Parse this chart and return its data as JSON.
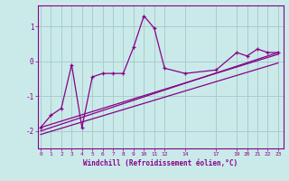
{
  "xlabel": "Windchill (Refroidissement éolien,°C)",
  "background_color": "#caeaea",
  "line_color": "#880088",
  "grid_color": "#aacccc",
  "xticks": [
    0,
    1,
    2,
    3,
    4,
    5,
    6,
    7,
    8,
    9,
    10,
    11,
    12,
    14,
    17,
    19,
    20,
    21,
    22,
    23
  ],
  "yticks": [
    -2,
    -1,
    0,
    1
  ],
  "xlim": [
    -0.3,
    23.5
  ],
  "ylim": [
    -2.5,
    1.6
  ],
  "main_x": [
    0,
    1,
    2,
    3,
    4,
    5,
    6,
    7,
    8,
    9,
    10,
    11,
    12,
    14,
    17,
    19,
    20,
    21,
    22,
    23
  ],
  "main_y": [
    -1.9,
    -1.55,
    -1.35,
    -0.1,
    -1.9,
    -0.45,
    -0.35,
    -0.35,
    -0.35,
    0.4,
    1.3,
    0.95,
    -0.2,
    -0.35,
    -0.25,
    0.25,
    0.15,
    0.35,
    0.25,
    0.25
  ],
  "trend_lines": [
    {
      "x0": 0,
      "y0": -2.0,
      "x1": 23,
      "y1": 0.25
    },
    {
      "x0": 0,
      "y0": -2.1,
      "x1": 23,
      "y1": -0.05
    },
    {
      "x0": 0,
      "y0": -1.9,
      "x1": 23,
      "y1": 0.2
    }
  ]
}
